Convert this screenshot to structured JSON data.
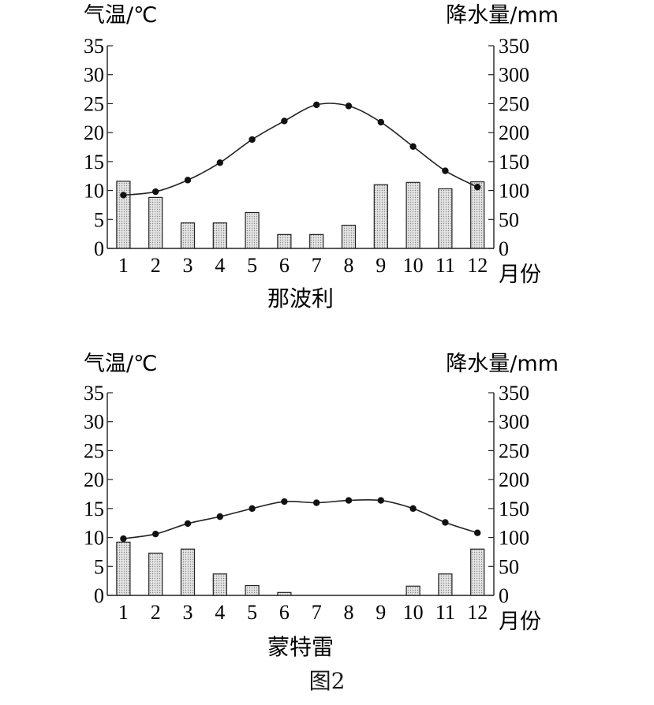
{
  "figure_caption": "图2",
  "chart_data": [
    {
      "type": "bar+line",
      "title": "那波利",
      "ylabel_left": "气温/℃",
      "ylabel_right": "降水量/mm",
      "xlabel": "月份",
      "categories": [
        "1",
        "2",
        "3",
        "4",
        "5",
        "6",
        "7",
        "8",
        "9",
        "10",
        "11",
        "12"
      ],
      "temperature": [
        9.2,
        9.8,
        11.8,
        14.8,
        18.8,
        22.0,
        24.8,
        24.6,
        21.8,
        17.6,
        13.4,
        10.6
      ],
      "precipitation": [
        116,
        88,
        44,
        44,
        62,
        24,
        24,
        40,
        110,
        114,
        103,
        115
      ],
      "ylim_left": [
        0,
        35
      ],
      "ylim_right": [
        0,
        350
      ],
      "yticks_left": [
        "0",
        "5",
        "10",
        "15",
        "20",
        "25",
        "30",
        "35"
      ],
      "yticks_right": [
        "0",
        "50",
        "100",
        "150",
        "200",
        "250",
        "300",
        "350"
      ]
    },
    {
      "type": "bar+line",
      "title": "蒙特雷",
      "ylabel_left": "气温/℃",
      "ylabel_right": "降水量/mm",
      "xlabel": "月份",
      "categories": [
        "1",
        "2",
        "3",
        "4",
        "5",
        "6",
        "7",
        "8",
        "9",
        "10",
        "11",
        "12"
      ],
      "temperature": [
        9.8,
        10.6,
        12.4,
        13.6,
        15.0,
        16.2,
        16.0,
        16.4,
        16.4,
        15.0,
        12.6,
        10.8
      ],
      "precipitation": [
        92,
        73,
        80,
        37,
        17,
        5,
        0,
        0,
        0,
        16,
        37,
        80
      ],
      "ylim_left": [
        0,
        35
      ],
      "ylim_right": [
        0,
        350
      ],
      "yticks_left": [
        "0",
        "5",
        "10",
        "15",
        "20",
        "25",
        "30",
        "35"
      ],
      "yticks_right": [
        "0",
        "50",
        "100",
        "150",
        "200",
        "250",
        "300",
        "350"
      ]
    }
  ]
}
